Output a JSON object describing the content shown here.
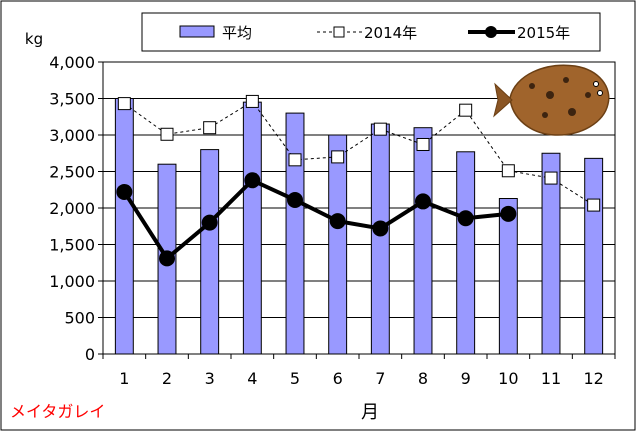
{
  "chart_data": {
    "type": "bar",
    "title": "",
    "xlabel": "月",
    "ylabel": "kg",
    "ylim": [
      0,
      4000
    ],
    "yticks": [
      0,
      500,
      1000,
      1500,
      2000,
      2500,
      3000,
      3500,
      4000
    ],
    "ytick_labels": [
      "0",
      "500",
      "1,000",
      "1,500",
      "2,000",
      "2,500",
      "3,000",
      "3,500",
      "4,000"
    ],
    "categories": [
      "1",
      "2",
      "3",
      "4",
      "5",
      "6",
      "7",
      "8",
      "9",
      "10",
      "11",
      "12"
    ],
    "grid": "horizontal",
    "legend_position": "top",
    "series": [
      {
        "name": "平均",
        "kind": "bar",
        "color": "#9999ff",
        "values": [
          3500,
          2600,
          2800,
          3450,
          3300,
          3000,
          3150,
          3100,
          2770,
          2130,
          2750,
          2680
        ]
      },
      {
        "name": "2014年",
        "kind": "line-dashed-open-square",
        "color": "#000000",
        "values": [
          3430,
          3010,
          3100,
          3460,
          2660,
          2700,
          3080,
          2870,
          3340,
          2510,
          2410,
          2040
        ]
      },
      {
        "name": "2015年",
        "kind": "line-bold-filled-circle",
        "color": "#000000",
        "values": [
          2220,
          1310,
          1800,
          2380,
          2110,
          1820,
          1720,
          2090,
          1860,
          1920,
          null,
          null
        ]
      }
    ],
    "annotation": "メイタガレイ",
    "annotation_color": "#ff0000"
  }
}
